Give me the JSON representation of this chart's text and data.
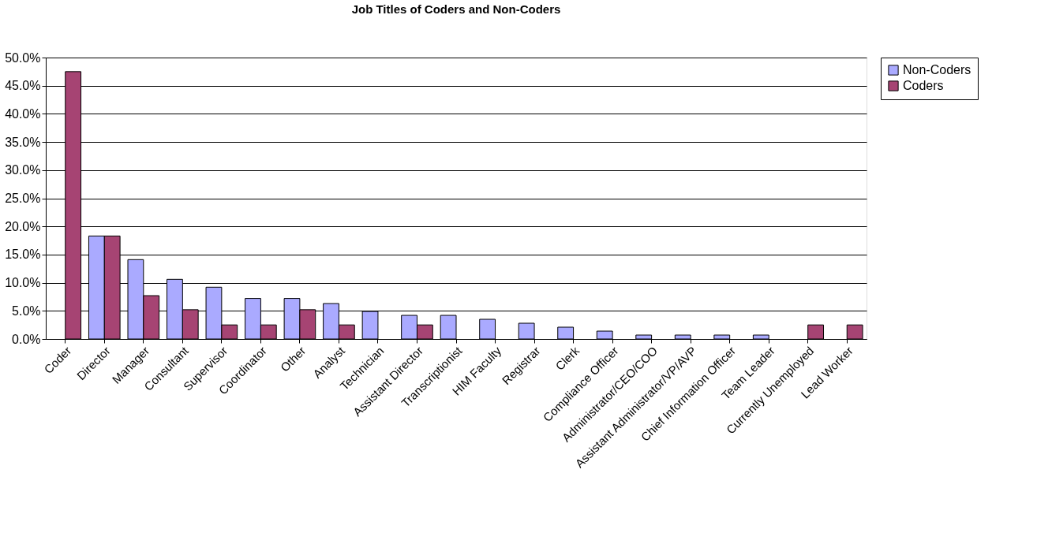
{
  "chart_data": {
    "type": "bar",
    "title": "Job Titles of Coders and Non-Coders",
    "categories": [
      "Coder",
      "Director",
      "Manager",
      "Consultant",
      "Supervisor",
      "Coordinator",
      "Other",
      "Analyst",
      "Technician",
      "Assistant Director",
      "Transcriptionist",
      "HIM Faculty",
      "Registrar",
      "Clerk",
      "Compliance Officer",
      "Administrator/CEO/COO",
      "Assistant Administrator/VP/AVP",
      "Chief Information Officer",
      "Team Leader",
      "Currently Unemployed",
      "Lead Worker"
    ],
    "series": [
      {
        "name": "Non-Coders",
        "color": "#aaaaff",
        "values": [
          null,
          18.3,
          14.1,
          10.6,
          9.2,
          7.2,
          7.2,
          6.3,
          4.9,
          4.2,
          4.2,
          3.5,
          2.8,
          2.1,
          1.4,
          0.7,
          0.7,
          0.7,
          0.7,
          null,
          null
        ]
      },
      {
        "name": "Coders",
        "color": "#a64473",
        "values": [
          47.5,
          18.3,
          7.7,
          5.2,
          2.5,
          2.5,
          5.2,
          2.5,
          null,
          2.5,
          null,
          null,
          null,
          null,
          null,
          null,
          null,
          null,
          null,
          2.5,
          2.5
        ]
      }
    ],
    "ylim": [
      0,
      50
    ],
    "yticks": [
      {
        "value": 0,
        "label": "0.0%"
      },
      {
        "value": 5,
        "label": "5.0%"
      },
      {
        "value": 10,
        "label": "10.0%"
      },
      {
        "value": 15,
        "label": "15.0%"
      },
      {
        "value": 20,
        "label": "20.0%"
      },
      {
        "value": 25,
        "label": "25.0%"
      },
      {
        "value": 30,
        "label": "30.0%"
      },
      {
        "value": 35,
        "label": "35.0%"
      },
      {
        "value": 40,
        "label": "40.0%"
      },
      {
        "value": 45,
        "label": "45.0%"
      },
      {
        "value": 50,
        "label": "50.0%"
      }
    ],
    "grid": "y",
    "legend": "right"
  }
}
